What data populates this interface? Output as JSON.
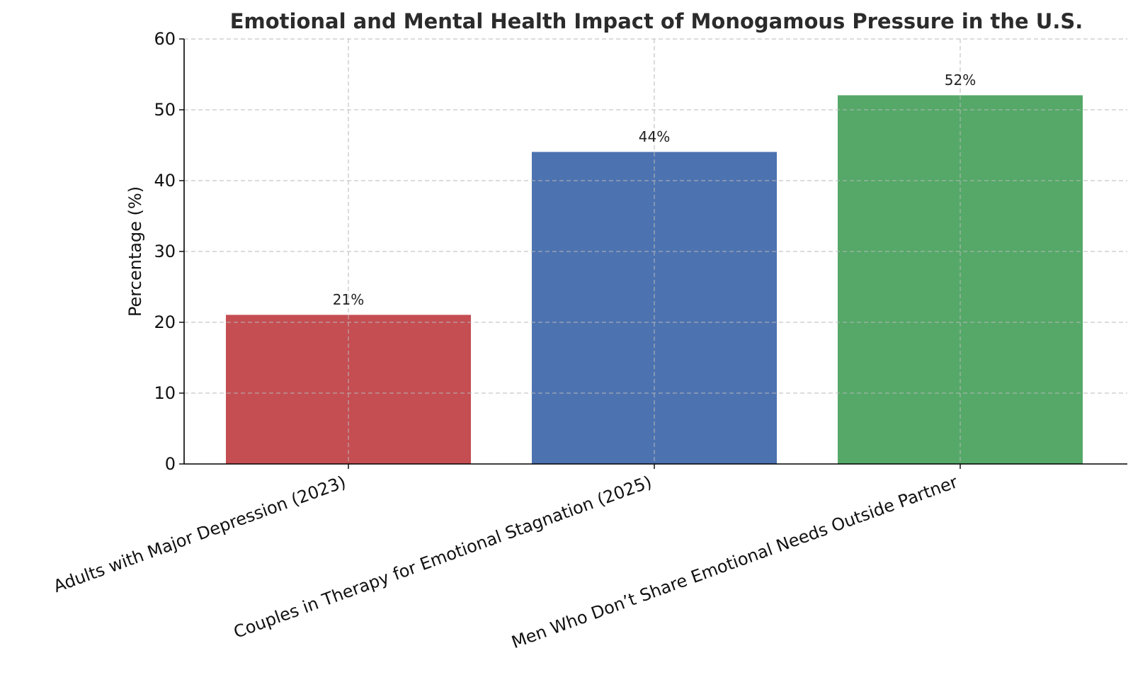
{
  "chart_data": {
    "type": "bar",
    "title": "Emotional and Mental Health Impact of Monogamous Pressure in the U.S.",
    "xlabel": "",
    "ylabel": "Percentage (%)",
    "categories": [
      "Adults with Major Depression (2023)",
      "Couples in Therapy for Emotional Stagnation (2025)",
      "Men Who Don’t Share Emotional Needs Outside Partner"
    ],
    "values": [
      21,
      44,
      52
    ],
    "value_labels": [
      "21%",
      "44%",
      "52%"
    ],
    "colors": [
      "#c44e52",
      "#4c72b0",
      "#55a868"
    ],
    "ylim": [
      0,
      60
    ],
    "yticks": [
      0,
      10,
      20,
      30,
      40,
      50,
      60
    ],
    "ytick_labels": [
      "0",
      "10",
      "20",
      "30",
      "40",
      "50",
      "60"
    ],
    "grid": true,
    "legend": "none"
  }
}
